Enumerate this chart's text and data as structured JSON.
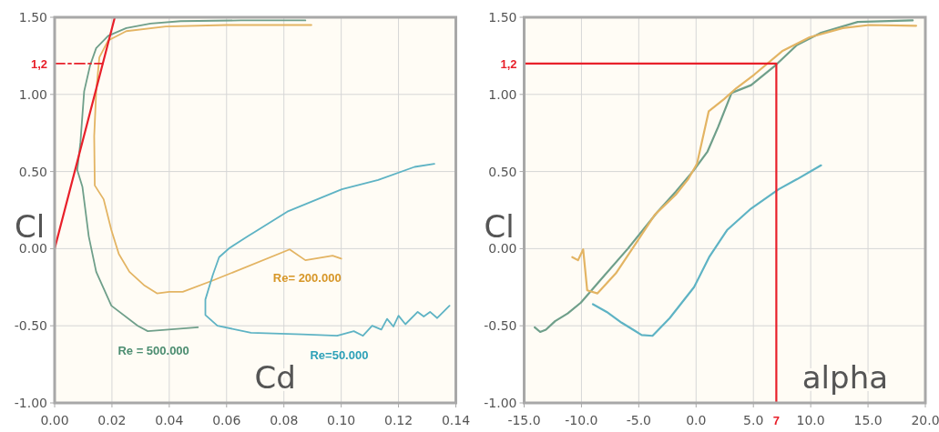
{
  "chart_data": [
    {
      "type": "line",
      "xlabel": "Cd",
      "ylabel": "Cl",
      "xlim": [
        0,
        0.14
      ],
      "ylim": [
        -1,
        1.5
      ],
      "xticks": [
        {
          "value": 0,
          "label": "0.00"
        },
        {
          "value": 0.02,
          "label": "0.02"
        },
        {
          "value": 0.04,
          "label": "0.04"
        },
        {
          "value": 0.06,
          "label": "0.06"
        },
        {
          "value": 0.08,
          "label": "0.08"
        },
        {
          "value": 0.1,
          "label": "0.10"
        },
        {
          "value": 0.12,
          "label": "0.12"
        },
        {
          "value": 0.14,
          "label": "0.14"
        }
      ],
      "yticks": [
        {
          "value": -1,
          "label": "-1.00"
        },
        {
          "value": -0.5,
          "label": "-0.50"
        },
        {
          "value": 0,
          "label": "0.00"
        },
        {
          "value": 0.5,
          "label": "0.50"
        },
        {
          "value": 1,
          "label": "1.00"
        },
        {
          "value": 1.5,
          "label": "1.50"
        }
      ],
      "grid": true,
      "series": [
        {
          "name": "Re = 500.000",
          "color": "#6f9f8a",
          "x": [
            0.05,
            0.0325,
            0.029,
            0.0198,
            0.0145,
            0.0119,
            0.0097,
            0.0079,
            0.009,
            0.0103,
            0.0124,
            0.0145,
            0.0187,
            0.025,
            0.0335,
            0.044,
            0.065,
            0.0875
          ],
          "values": [
            -0.51,
            -0.535,
            -0.5,
            -0.37,
            -0.15,
            0.08,
            0.4,
            0.51,
            0.69,
            1.02,
            1.19,
            1.3,
            1.38,
            1.43,
            1.46,
            1.475,
            1.48,
            1.48
          ]
        },
        {
          "name": "Re= 200.000",
          "color": "#e3b463",
          "x": [
            0.1,
            0.097,
            0.0875,
            0.082,
            0.0547,
            0.0447,
            0.04,
            0.0357,
            0.0314,
            0.0261,
            0.0224,
            0.0198,
            0.0171,
            0.014,
            0.0138,
            0.0145,
            0.0156,
            0.0187,
            0.025,
            0.0388,
            0.06,
            0.0896
          ],
          "values": [
            -0.065,
            -0.045,
            -0.075,
            -0.005,
            -0.21,
            -0.28,
            -0.28,
            -0.29,
            -0.24,
            -0.15,
            -0.035,
            0.12,
            0.32,
            0.41,
            0.73,
            1.02,
            1.24,
            1.35,
            1.41,
            1.44,
            1.45,
            1.45
          ]
        },
        {
          "name": "Re=50.000",
          "color": "#5eb3c4",
          "x": [
            0.1325,
            0.1256,
            0.1129,
            0.1002,
            0.0812,
            0.0674,
            0.061,
            0.0574,
            0.0552,
            0.0526,
            0.0526,
            0.0568,
            0.0685,
            0.0864,
            0.0986,
            0.1044,
            0.1076,
            0.1108,
            0.114,
            0.116,
            0.1182,
            0.12,
            0.1224,
            0.1267,
            0.1288,
            0.131,
            0.1335,
            0.1378
          ],
          "values": [
            0.55,
            0.53,
            0.445,
            0.385,
            0.24,
            0.08,
            0.004,
            -0.055,
            -0.17,
            -0.33,
            -0.43,
            -0.5,
            -0.545,
            -0.555,
            -0.565,
            -0.535,
            -0.565,
            -0.5,
            -0.525,
            -0.455,
            -0.505,
            -0.435,
            -0.49,
            -0.41,
            -0.44,
            -0.41,
            -0.45,
            -0.37
          ]
        },
        {
          "type": "line",
          "color": "#e8202a",
          "x": [
            0,
            0.021
          ],
          "values": [
            0,
            1.5
          ]
        },
        {
          "type": "line",
          "color": "#e8202a",
          "line_style": "dashed",
          "x": [
            0,
            0.0168
          ],
          "values": [
            1.2,
            1.2
          ]
        }
      ],
      "annotations": [
        {
          "text": "1,2",
          "x": 0,
          "y": 1.2
        }
      ]
    },
    {
      "type": "line",
      "xlabel": "alpha",
      "ylabel": "Cl",
      "xlim": [
        -15,
        20
      ],
      "ylim": [
        -1,
        1.5
      ],
      "xticks": [
        {
          "value": -15,
          "label": "-15.0"
        },
        {
          "value": -10,
          "label": "-10.0"
        },
        {
          "value": -5,
          "label": "-5.0"
        },
        {
          "value": 0,
          "label": "0.0"
        },
        {
          "value": 5,
          "label": "5.0"
        },
        {
          "value": 10,
          "label": "10.0"
        },
        {
          "value": 15,
          "label": "15.0"
        },
        {
          "value": 20,
          "label": "20.0"
        }
      ],
      "yticks": [
        {
          "value": -1,
          "label": "-1.00"
        },
        {
          "value": -0.5,
          "label": "-0.50"
        },
        {
          "value": 0,
          "label": "0.00"
        },
        {
          "value": 0.5,
          "label": "0.50"
        },
        {
          "value": 1,
          "label": "1.00"
        },
        {
          "value": 1.5,
          "label": "1.50"
        }
      ],
      "grid": true,
      "series": [
        {
          "color": "#6f9f8a",
          "x": [
            -14.08,
            -13.6,
            -13.1,
            -12.3,
            -11.2,
            -10.05,
            -8.3,
            -5.95,
            -3.35,
            -1.77,
            -0.18,
            1,
            1.93,
            3.1,
            4.8,
            6.95,
            8.8,
            10.9,
            14.1,
            18.9
          ],
          "values": [
            -0.51,
            -0.54,
            -0.525,
            -0.47,
            -0.42,
            -0.35,
            -0.2,
            0,
            0.24,
            0.37,
            0.51,
            0.63,
            0.79,
            1.01,
            1.06,
            1.19,
            1.32,
            1.4,
            1.47,
            1.48
          ]
        },
        {
          "color": "#e3b463",
          "x": [
            -10.8,
            -10.3,
            -9.85,
            -9.5,
            -8.6,
            -7,
            -5.2,
            -3.6,
            -1.77,
            -0.7,
            0.08,
            1.1,
            2.45,
            3.5,
            5.1,
            7.5,
            9.9,
            12.8,
            15.1,
            19.2
          ],
          "values": [
            -0.055,
            -0.075,
            -0.005,
            -0.27,
            -0.29,
            -0.16,
            0.04,
            0.22,
            0.35,
            0.45,
            0.55,
            0.89,
            0.97,
            1.04,
            1.13,
            1.28,
            1.37,
            1.43,
            1.45,
            1.445
          ]
        },
        {
          "color": "#5eb3c4",
          "x": [
            -9,
            -7.8,
            -6.5,
            -5.4,
            -4.75,
            -3.8,
            -2.3,
            -0.18,
            1.14,
            2.7,
            4.8,
            7.2,
            8.8,
            10.9
          ],
          "values": [
            -0.36,
            -0.41,
            -0.48,
            -0.53,
            -0.56,
            -0.565,
            -0.45,
            -0.25,
            -0.055,
            0.12,
            0.26,
            0.385,
            0.45,
            0.54
          ]
        },
        {
          "type": "line",
          "color": "#e8202a",
          "x": [
            -15,
            7,
            7
          ],
          "values": [
            1.2,
            1.2,
            -1
          ]
        }
      ],
      "annotations": [
        {
          "text": "1,2",
          "x": -15,
          "y": 1.2
        },
        {
          "text": "7",
          "x": 7,
          "y": -1
        }
      ]
    }
  ]
}
